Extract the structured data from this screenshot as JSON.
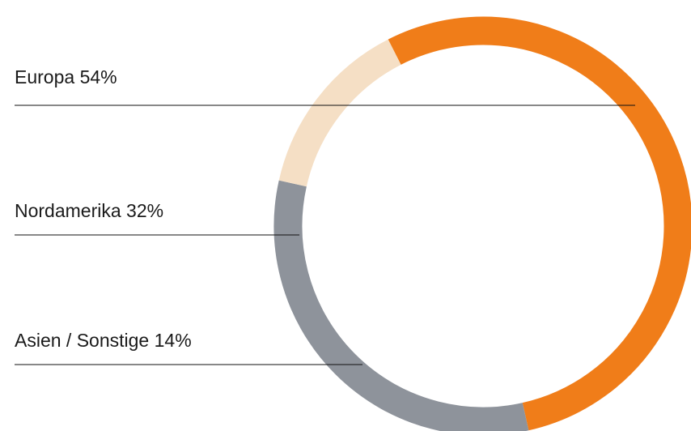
{
  "chart_data": {
    "type": "donut",
    "categories": [
      "Europa",
      "Nordamerika",
      "Asien / Sonstige"
    ],
    "values": [
      54,
      32,
      14
    ],
    "value_labels": [
      "54%",
      "32%",
      "14%"
    ],
    "colors": [
      "#f07d19",
      "#8e939b",
      "#f5dfc5"
    ]
  }
}
